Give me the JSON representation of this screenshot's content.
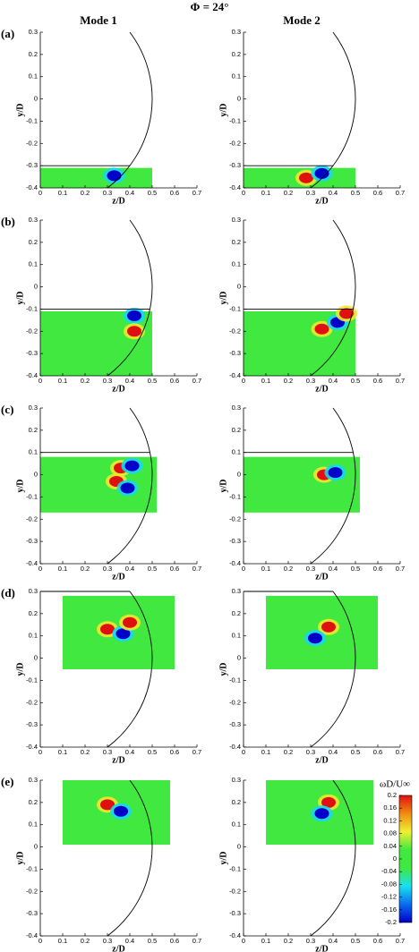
{
  "title": "Φ = 24°",
  "columns": [
    "Mode 1",
    "Mode 2"
  ],
  "colorbar": {
    "label": "ωD/U∞",
    "lim": [
      -0.2,
      0.2
    ],
    "ticks": [
      0.2,
      0.16,
      0.12,
      0.08,
      0.04,
      0,
      -0.04,
      -0.08,
      -0.12,
      -0.16,
      -0.2
    ],
    "colors": [
      "#0000c8",
      "#0a6cf0",
      "#18e0f0",
      "#40e840",
      "#40e840",
      "#f0f030",
      "#f08c10",
      "#e01010"
    ]
  },
  "chart_data": [
    {
      "type": "contour",
      "label": "(a)",
      "xlabel": "z/D",
      "ylabel": "y/D",
      "xlim": [
        0,
        0.7
      ],
      "ylim": [
        -0.4,
        0.3
      ],
      "xticks": [
        0,
        0.1,
        0.2,
        0.3,
        0.4,
        0.5,
        0.6,
        0.7
      ],
      "yticks": [
        -0.4,
        -0.3,
        -0.2,
        -0.1,
        0,
        0.1,
        0.2,
        0.3
      ],
      "window": {
        "z": [
          0,
          0.5
        ],
        "y": [
          -0.4,
          -0.31
        ]
      },
      "wall_y": -0.3,
      "body_radius": 0.5,
      "vortices": [
        {
          "z": 0.33,
          "y": -0.345,
          "value": -0.2
        }
      ]
    },
    {
      "type": "contour",
      "xlabel": "z/D",
      "ylabel": "y/D",
      "xlim": [
        0,
        0.7
      ],
      "ylim": [
        -0.4,
        0.3
      ],
      "xticks": [
        0,
        0.1,
        0.2,
        0.3,
        0.4,
        0.5,
        0.6,
        0.7
      ],
      "yticks": [
        -0.4,
        -0.3,
        -0.2,
        -0.1,
        0,
        0.1,
        0.2,
        0.3
      ],
      "window": {
        "z": [
          0,
          0.5
        ],
        "y": [
          -0.4,
          -0.31
        ]
      },
      "wall_y": -0.3,
      "body_radius": 0.5,
      "vortices": [
        {
          "z": 0.28,
          "y": -0.355,
          "value": 0.2
        },
        {
          "z": 0.35,
          "y": -0.335,
          "value": -0.2
        }
      ]
    },
    {
      "type": "contour",
      "label": "(b)",
      "xlabel": "z/D",
      "ylabel": "y/D",
      "xlim": [
        0,
        0.7
      ],
      "ylim": [
        -0.4,
        0.3
      ],
      "xticks": [
        0,
        0.1,
        0.2,
        0.3,
        0.4,
        0.5,
        0.6,
        0.7
      ],
      "yticks": [
        -0.4,
        -0.3,
        -0.2,
        -0.1,
        0,
        0.1,
        0.2,
        0.3
      ],
      "window": {
        "z": [
          0,
          0.5
        ],
        "y": [
          -0.4,
          -0.11
        ]
      },
      "wall_y": -0.1,
      "body_radius": 0.5,
      "vortices": [
        {
          "z": 0.42,
          "y": -0.13,
          "value": -0.2
        },
        {
          "z": 0.42,
          "y": -0.2,
          "value": 0.2
        }
      ]
    },
    {
      "type": "contour",
      "xlabel": "z/D",
      "ylabel": "y/D",
      "xlim": [
        0,
        0.7
      ],
      "ylim": [
        -0.4,
        0.3
      ],
      "xticks": [
        0,
        0.1,
        0.2,
        0.3,
        0.4,
        0.5,
        0.6,
        0.7
      ],
      "yticks": [
        -0.4,
        -0.3,
        -0.2,
        -0.1,
        0,
        0.1,
        0.2,
        0.3
      ],
      "window": {
        "z": [
          0,
          0.5
        ],
        "y": [
          -0.4,
          -0.11
        ]
      },
      "wall_y": -0.1,
      "body_radius": 0.5,
      "vortices": [
        {
          "z": 0.35,
          "y": -0.19,
          "value": 0.2
        },
        {
          "z": 0.42,
          "y": -0.16,
          "value": -0.2
        },
        {
          "z": 0.46,
          "y": -0.12,
          "value": 0.2
        }
      ]
    },
    {
      "type": "contour",
      "label": "(c)",
      "xlabel": "z/D",
      "ylabel": "y/D",
      "xlim": [
        0,
        0.7
      ],
      "ylim": [
        -0.4,
        0.3
      ],
      "xticks": [
        0,
        0.1,
        0.2,
        0.3,
        0.4,
        0.5,
        0.6,
        0.7
      ],
      "yticks": [
        -0.4,
        -0.3,
        -0.2,
        -0.1,
        0,
        0.1,
        0.2,
        0.3
      ],
      "window": {
        "z": [
          0,
          0.52
        ],
        "y": [
          -0.17,
          0.08
        ]
      },
      "wall_y": 0.1,
      "body_radius": 0.5,
      "vortices": [
        {
          "z": 0.36,
          "y": 0.03,
          "value": 0.2
        },
        {
          "z": 0.41,
          "y": 0.04,
          "value": -0.2
        },
        {
          "z": 0.34,
          "y": -0.03,
          "value": 0.2
        },
        {
          "z": 0.39,
          "y": -0.06,
          "value": -0.2
        }
      ]
    },
    {
      "type": "contour",
      "xlabel": "z/D",
      "ylabel": "y/D",
      "xlim": [
        0,
        0.7
      ],
      "ylim": [
        -0.4,
        0.3
      ],
      "xticks": [
        0,
        0.1,
        0.2,
        0.3,
        0.4,
        0.5,
        0.6,
        0.7
      ],
      "yticks": [
        -0.4,
        -0.3,
        -0.2,
        -0.1,
        0,
        0.1,
        0.2,
        0.3
      ],
      "window": {
        "z": [
          0,
          0.52
        ],
        "y": [
          -0.17,
          0.08
        ]
      },
      "wall_y": 0.1,
      "body_radius": 0.5,
      "vortices": [
        {
          "z": 0.36,
          "y": 0.0,
          "value": 0.2
        },
        {
          "z": 0.41,
          "y": 0.01,
          "value": -0.2
        }
      ]
    },
    {
      "type": "contour",
      "label": "(d)",
      "xlabel": "z/D",
      "ylabel": "y/D",
      "xlim": [
        0,
        0.7
      ],
      "ylim": [
        -0.4,
        0.3
      ],
      "xticks": [
        0,
        0.1,
        0.2,
        0.3,
        0.4,
        0.5,
        0.6,
        0.7
      ],
      "yticks": [
        -0.4,
        -0.3,
        -0.2,
        -0.1,
        0,
        0.1,
        0.2,
        0.3
      ],
      "window": {
        "z": [
          0.1,
          0.6
        ],
        "y": [
          -0.05,
          0.28
        ]
      },
      "wall_y": 0.3,
      "body_radius": 0.5,
      "vortices": [
        {
          "z": 0.3,
          "y": 0.13,
          "value": 0.2
        },
        {
          "z": 0.37,
          "y": 0.11,
          "value": -0.2
        },
        {
          "z": 0.4,
          "y": 0.16,
          "value": 0.2
        }
      ]
    },
    {
      "type": "contour",
      "xlabel": "z/D",
      "ylabel": "y/D",
      "xlim": [
        0,
        0.7
      ],
      "ylim": [
        -0.4,
        0.3
      ],
      "xticks": [
        0,
        0.1,
        0.2,
        0.3,
        0.4,
        0.5,
        0.6,
        0.7
      ],
      "yticks": [
        -0.4,
        -0.3,
        -0.2,
        -0.1,
        0,
        0.1,
        0.2,
        0.3
      ],
      "window": {
        "z": [
          0.1,
          0.6
        ],
        "y": [
          -0.05,
          0.28
        ]
      },
      "wall_y": 0.3,
      "body_radius": 0.5,
      "vortices": [
        {
          "z": 0.38,
          "y": 0.14,
          "value": 0.2
        },
        {
          "z": 0.32,
          "y": 0.09,
          "value": -0.2
        }
      ]
    },
    {
      "type": "contour",
      "label": "(e)",
      "xlabel": "z/D",
      "ylabel": "y/D",
      "xlim": [
        0,
        0.7
      ],
      "ylim": [
        -0.4,
        0.3
      ],
      "xticks": [
        0,
        0.1,
        0.2,
        0.3,
        0.4,
        0.5,
        0.6,
        0.7
      ],
      "yticks": [
        -0.4,
        -0.3,
        -0.2,
        -0.1,
        0,
        0.1,
        0.2,
        0.3
      ],
      "window": {
        "z": [
          0.1,
          0.58
        ],
        "y": [
          0.01,
          0.3
        ]
      },
      "body_radius": 0.5,
      "vortices": [
        {
          "z": 0.3,
          "y": 0.19,
          "value": 0.2
        },
        {
          "z": 0.36,
          "y": 0.16,
          "value": -0.2
        }
      ]
    },
    {
      "type": "contour",
      "xlabel": "z/D",
      "ylabel": "y/D",
      "xlim": [
        0,
        0.7
      ],
      "ylim": [
        -0.4,
        0.3
      ],
      "xticks": [
        0,
        0.1,
        0.2,
        0.3,
        0.4,
        0.5,
        0.6,
        0.7
      ],
      "yticks": [
        -0.4,
        -0.3,
        -0.2,
        -0.1,
        0,
        0.1,
        0.2,
        0.3
      ],
      "window": {
        "z": [
          0.1,
          0.58
        ],
        "y": [
          0.01,
          0.3
        ]
      },
      "body_radius": 0.5,
      "vortices": [
        {
          "z": 0.38,
          "y": 0.2,
          "value": 0.2
        },
        {
          "z": 0.35,
          "y": 0.15,
          "value": -0.2
        }
      ]
    }
  ]
}
